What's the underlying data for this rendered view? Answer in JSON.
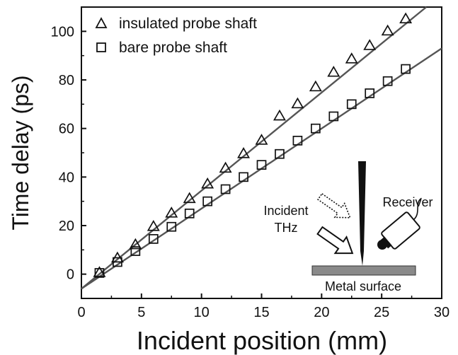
{
  "chart_data": {
    "type": "scatter",
    "xlabel": "Incident position (mm)",
    "ylabel": "Time delay (ps)",
    "xlim": [
      0,
      30
    ],
    "ylim": [
      -10,
      110
    ],
    "xticks": [
      "0",
      "5",
      "10",
      "15",
      "20",
      "25",
      "30"
    ],
    "yticks": [
      "0",
      "20",
      "40",
      "60",
      "80",
      "100"
    ],
    "grid": false,
    "legend_position": "top-left",
    "series": [
      {
        "name": "insulated probe shaft",
        "marker": "triangle",
        "x": [
          1.5,
          3,
          4.5,
          6,
          7.5,
          9,
          10.5,
          12,
          13.5,
          15,
          16.5,
          18,
          19.5,
          21,
          22.5,
          24,
          25.5,
          27
        ],
        "y": [
          0.5,
          6.5,
          12,
          19.5,
          25,
          31,
          37,
          43.5,
          49.5,
          55,
          65,
          70,
          77,
          83,
          88.5,
          94,
          100,
          105
        ],
        "fit": {
          "slope": 4.04,
          "intercept": -6
        }
      },
      {
        "name": "bare probe shaft",
        "marker": "square",
        "x": [
          1.5,
          3,
          4.5,
          6,
          7.5,
          9,
          10.5,
          12,
          13.5,
          15,
          16.5,
          18,
          19.5,
          21,
          22.5,
          24,
          25.5,
          27
        ],
        "y": [
          0.5,
          5,
          9.5,
          14.5,
          19.5,
          25,
          30,
          35,
          40,
          45,
          49.5,
          55,
          60,
          65,
          70,
          74.5,
          79.5,
          84.5
        ],
        "fit": {
          "slope": 3.3,
          "intercept": -6
        }
      }
    ]
  },
  "inset": {
    "incident_label_line1": "Incident",
    "incident_label_line2": "THz",
    "receiver_label": "Receiver",
    "surface_label": "Metal surface"
  }
}
